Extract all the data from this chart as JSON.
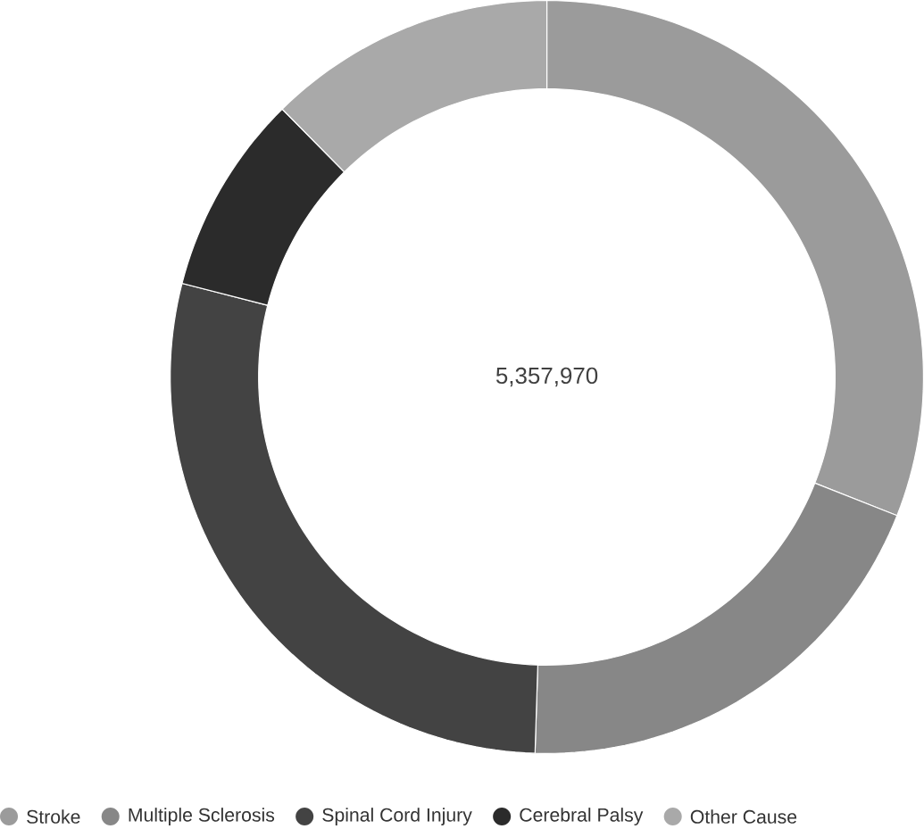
{
  "chart_data": {
    "type": "donut",
    "categories": [
      "Stroke",
      "Multiple Sclerosis",
      "Spinal Cord Injury",
      "Cerebral Palsy",
      "Other Cause"
    ],
    "values": [
      31.0,
      19.5,
      28.5,
      8.6,
      12.4
    ],
    "colors": [
      "#9b9b9b",
      "#878787",
      "#434343",
      "#2b2b2b",
      "#a9a9a9"
    ],
    "annotations": [
      "5,357,970"
    ],
    "legend": "bottom"
  }
}
